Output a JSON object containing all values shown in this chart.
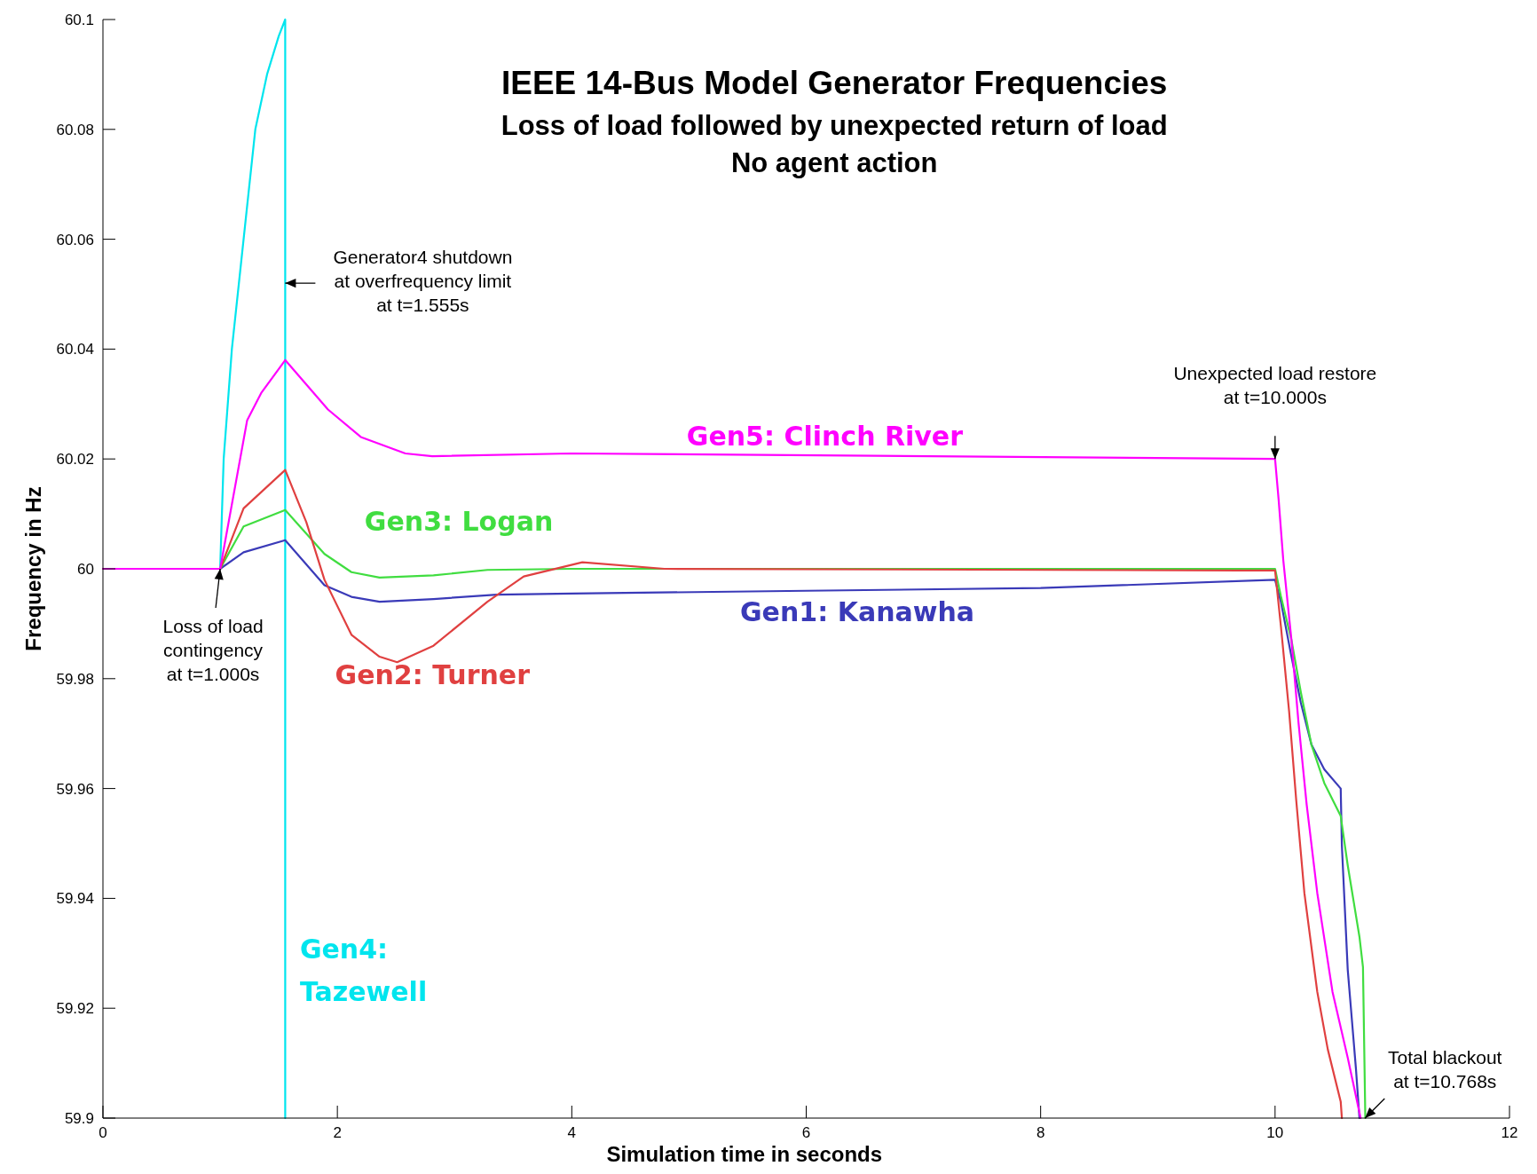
{
  "chart_data": {
    "type": "line",
    "title": "IEEE 14-Bus Model Generator Frequencies",
    "subtitle": "Loss of load followed by unexpected return of load\nNo agent action",
    "xlabel": "Simulation time in seconds",
    "ylabel": "Frequency in Hz",
    "xlim": [
      0,
      12
    ],
    "xticks": [
      0,
      2,
      4,
      6,
      8,
      10,
      12
    ],
    "ylim": [
      59.9,
      60.1
    ],
    "yticks": [
      59.9,
      59.92,
      59.94,
      59.96,
      59.98,
      60,
      60.02,
      60.04,
      60.06,
      60.08,
      60.1
    ],
    "grid": false,
    "legend": false,
    "marker": "none",
    "line_style": "solid",
    "series": [
      {
        "name": "Gen4: Tazewell",
        "color": "#00e5ee",
        "x": [
          0,
          1,
          1.03,
          1.1,
          1.2,
          1.3,
          1.4,
          1.5,
          1.555,
          1.555
        ],
        "values": [
          60,
          60,
          60.02,
          60.04,
          60.06,
          60.08,
          60.09,
          60.097,
          60.1,
          59.9
        ]
      },
      {
        "name": "Gen1: Kanawha",
        "color": "#3a3ab8",
        "x": [
          0,
          1,
          1.2,
          1.555,
          1.89,
          2.12,
          2.36,
          2.82,
          3.36,
          4,
          6,
          8,
          10,
          10.05,
          10.14,
          10.22,
          10.31,
          10.42,
          10.56,
          10.57,
          10.62,
          10.69,
          10.72
        ],
        "values": [
          60,
          60,
          60.003,
          60.0052,
          59.997,
          59.9949,
          59.994,
          59.9945,
          59.9953,
          59.9955,
          59.996,
          59.9965,
          59.998,
          59.994,
          59.984,
          59.9756,
          59.968,
          59.9635,
          59.96,
          59.9496,
          59.927,
          59.909,
          59.9
        ]
      },
      {
        "name": "Gen3: Logan",
        "color": "#40dd40",
        "x": [
          0,
          1,
          1.2,
          1.555,
          1.89,
          2.12,
          2.36,
          2.82,
          3.28,
          4,
          10,
          10.05,
          10.14,
          10.22,
          10.31,
          10.42,
          10.56,
          10.62,
          10.72,
          10.75,
          10.77
        ],
        "values": [
          60,
          60,
          60.0077,
          60.0107,
          60.0027,
          59.9994,
          59.9984,
          59.9988,
          59.9998,
          60,
          60,
          59.995,
          59.987,
          59.9775,
          59.968,
          59.961,
          59.955,
          59.946,
          59.933,
          59.9275,
          59.9
        ]
      },
      {
        "name": "Gen2: Turner",
        "color": "#e04040",
        "x": [
          0,
          1,
          1.2,
          1.555,
          1.735,
          1.89,
          2.12,
          2.36,
          2.51,
          2.82,
          3.28,
          3.59,
          4.09,
          4.79,
          9.7,
          10,
          10.05,
          10.12,
          10.18,
          10.25,
          10.36,
          10.45,
          10.56,
          10.57
        ],
        "values": [
          60,
          60,
          60.011,
          60.018,
          60.0085,
          59.998,
          59.988,
          59.984,
          59.983,
          59.986,
          59.994,
          59.9986,
          60.0012,
          60,
          59.9997,
          59.9997,
          59.9895,
          59.974,
          59.958,
          59.941,
          59.923,
          59.9125,
          59.903,
          59.9
        ]
      },
      {
        "name": "Gen5: Clinch River",
        "color": "#ff00ff",
        "x": [
          0,
          1,
          1.23,
          1.35,
          1.555,
          1.92,
          2.2,
          2.58,
          2.81,
          4,
          10,
          10.03,
          10.07,
          10.14,
          10.2,
          10.27,
          10.36,
          10.49,
          10.62,
          10.73
        ],
        "values": [
          60,
          60,
          60.027,
          60.032,
          60.038,
          60.029,
          60.024,
          60.021,
          60.0205,
          60.021,
          60.02,
          60.0127,
          60.0016,
          59.987,
          59.972,
          59.957,
          59.941,
          59.923,
          59.911,
          59.9
        ]
      }
    ],
    "annotations": [
      {
        "text": "Generator4 shutdown\nat overfrequency limit\nat t=1.555s",
        "x": 1.555,
        "y": 60.052
      },
      {
        "text": "Loss of load\ncontingency\nat t=1.000s",
        "x": 1,
        "y": 60
      },
      {
        "text": "Unexpected load restore\nat t=10.000s",
        "x": 10,
        "y": 60.02
      },
      {
        "text": "Total blackout\nat t=10.768s",
        "x": 10.768,
        "y": 59.9
      }
    ]
  }
}
